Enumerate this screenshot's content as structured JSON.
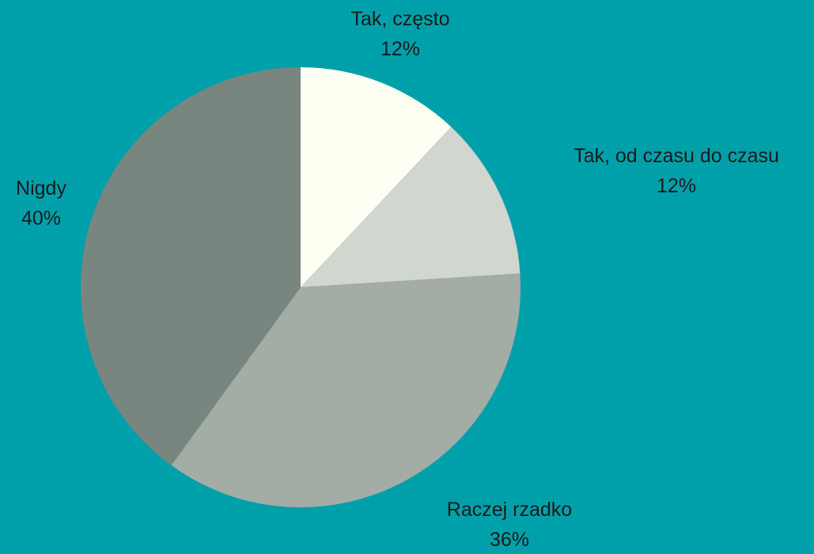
{
  "page": {
    "background_color": "#00A0AB"
  },
  "chart_data": {
    "type": "pie",
    "title": "",
    "start_angle_deg": 0,
    "direction": "clockwise",
    "slices": [
      {
        "label": "Tak, często",
        "value": 12,
        "value_label": "12%",
        "color": "#FFFFF3"
      },
      {
        "label": "Tak, od czasu do czasu",
        "value": 12,
        "value_label": "12%",
        "color": "#D1D6CF"
      },
      {
        "label": "Raczej rzadko",
        "value": 36,
        "value_label": "36%",
        "color": "#A3ACA5"
      },
      {
        "label": "Nigdy",
        "value": 40,
        "value_label": "40%",
        "color": "#79867F"
      }
    ]
  }
}
